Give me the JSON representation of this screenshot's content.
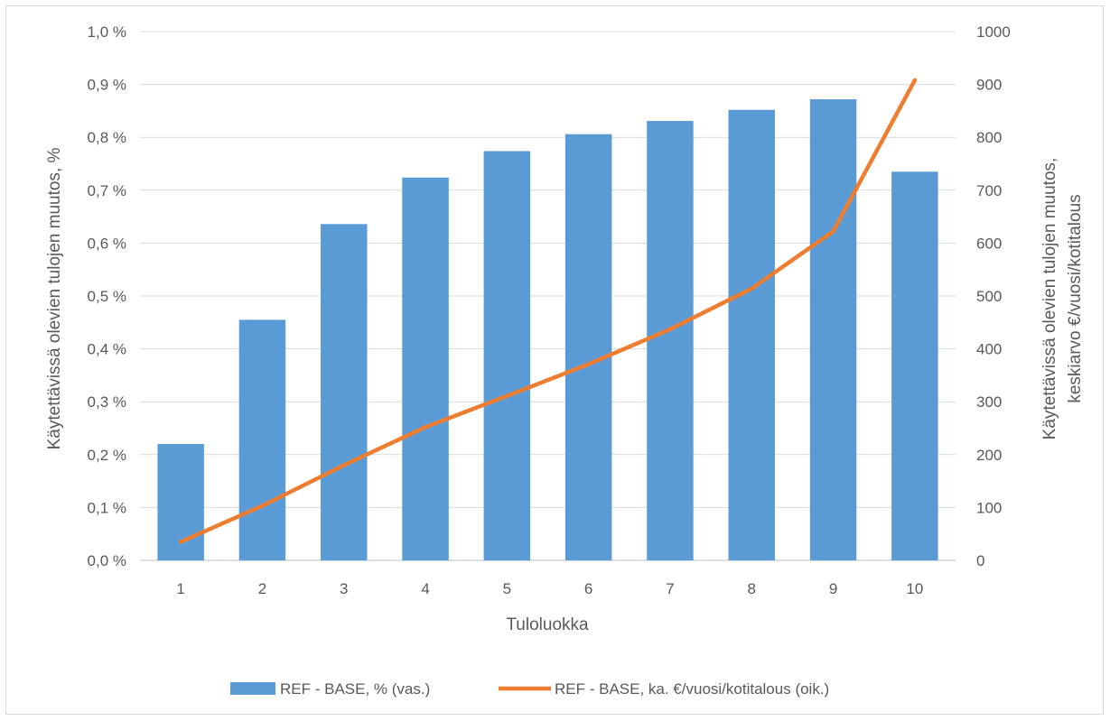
{
  "chart_data": {
    "type": "bar+line",
    "categories": [
      "1",
      "2",
      "3",
      "4",
      "5",
      "6",
      "7",
      "8",
      "9",
      "10"
    ],
    "series": [
      {
        "name": "REF - BASE, % (vas.)",
        "type": "bar",
        "axis": "left",
        "color": "#5b9bd5",
        "values": [
          0.22,
          0.455,
          0.636,
          0.724,
          0.774,
          0.806,
          0.831,
          0.852,
          0.872,
          0.735
        ]
      },
      {
        "name": "REF - BASE, ka. €/vuosi/kotitalous (oik.)",
        "type": "line",
        "axis": "right",
        "color": "#ed7d31",
        "values": [
          35,
          103,
          180,
          252,
          311,
          371,
          437,
          514,
          622,
          908
        ]
      }
    ],
    "xlabel": "Tuloluokka",
    "ylabel_left": "Käytettävissä olevien tulojen muutos, %",
    "ylabel_right_lines": [
      "Käytettävissä olevien tulojen muutos,",
      "keskiarvo  €/vuosi/kotitalous"
    ],
    "left_axis": {
      "min": 0,
      "max": 1.0,
      "tick_labels": [
        "0,0 %",
        "0,1 %",
        "0,2 %",
        "0,3 %",
        "0,4 %",
        "0,5 %",
        "0,6 %",
        "0,7 %",
        "0,8 %",
        "0,9 %",
        "1,0 %"
      ]
    },
    "right_axis": {
      "min": 0,
      "max": 1000,
      "tick_labels": [
        "0",
        "100",
        "200",
        "300",
        "400",
        "500",
        "600",
        "700",
        "800",
        "900",
        "1000"
      ]
    },
    "grid": true,
    "legend_position": "bottom"
  }
}
